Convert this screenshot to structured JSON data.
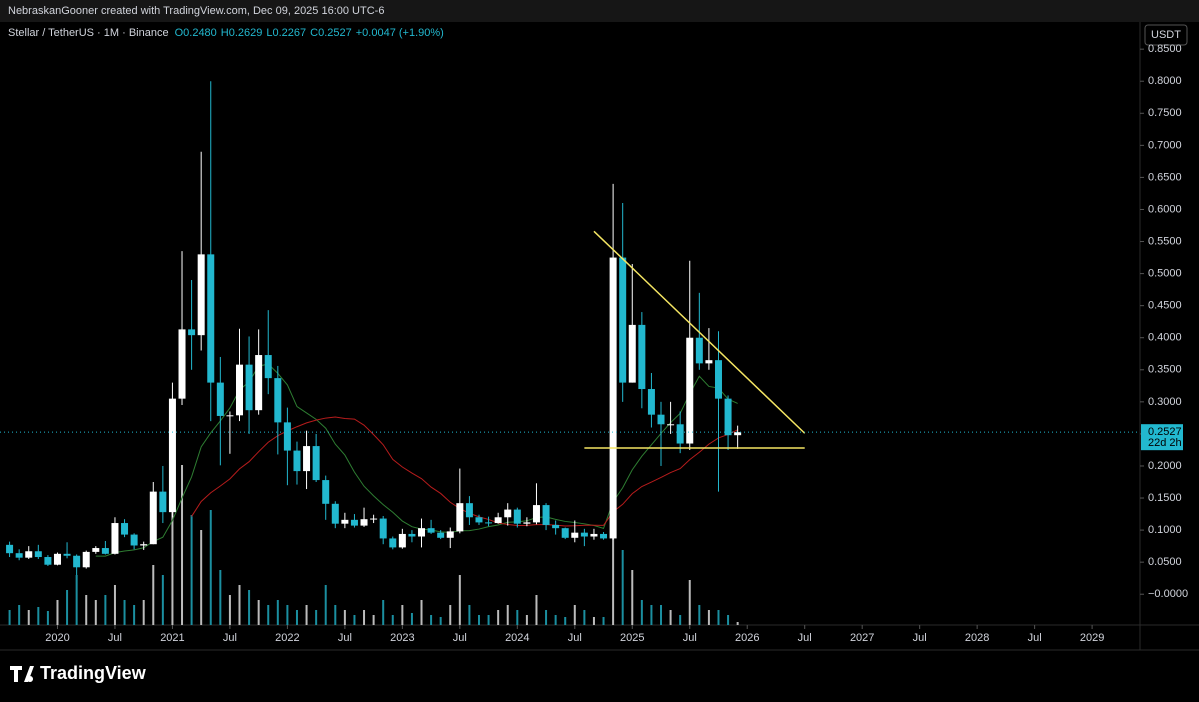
{
  "header": "NebraskanGooner created with TradingView.com, Dec 09, 2025 16:00 UTC-6",
  "legend": {
    "symbol": "Stellar / TetherUS · 1M · Binance",
    "fields": [
      "O0.2480",
      "H0.2629",
      "L0.2267",
      "C0.2527"
    ],
    "change": "+0.0047 (+1.90%)"
  },
  "currency": "USDT",
  "logo": "TradingView",
  "chart_data": {
    "type": "candlestick",
    "up_color": "#ffffff",
    "down_color": "#22b8cf",
    "x": [
      "2019-08",
      "2019-09",
      "2019-10",
      "2019-11",
      "2019-12",
      "2020-01",
      "2020-02",
      "2020-03",
      "2020-04",
      "2020-05",
      "2020-06",
      "2020-07",
      "2020-08",
      "2020-09",
      "2020-10",
      "2020-11",
      "2020-12",
      "2021-01",
      "2021-02",
      "2021-03",
      "2021-04",
      "2021-05",
      "2021-06",
      "2021-07",
      "2021-08",
      "2021-09",
      "2021-10",
      "2021-11",
      "2021-12",
      "2022-01",
      "2022-02",
      "2022-03",
      "2022-04",
      "2022-05",
      "2022-06",
      "2022-07",
      "2022-08",
      "2022-09",
      "2022-10",
      "2022-11",
      "2022-12",
      "2023-01",
      "2023-02",
      "2023-03",
      "2023-04",
      "2023-05",
      "2023-06",
      "2023-07",
      "2023-08",
      "2023-09",
      "2023-10",
      "2023-11",
      "2023-12",
      "2024-01",
      "2024-02",
      "2024-03",
      "2024-04",
      "2024-05",
      "2024-06",
      "2024-07",
      "2024-08",
      "2024-09",
      "2024-10",
      "2024-11",
      "2024-12",
      "2025-01",
      "2025-02",
      "2025-03",
      "2025-04",
      "2025-05",
      "2025-06",
      "2025-07",
      "2025-08",
      "2025-09",
      "2025-10",
      "2025-11",
      "2025-12"
    ],
    "open": [
      0.077,
      0.064,
      0.057,
      0.067,
      0.058,
      0.046,
      0.063,
      0.06,
      0.042,
      0.066,
      0.072,
      0.063,
      0.111,
      0.093,
      0.076,
      0.078,
      0.16,
      0.128,
      0.305,
      0.413,
      0.404,
      0.53,
      0.33,
      0.278,
      0.279,
      0.358,
      0.287,
      0.373,
      0.337,
      0.268,
      0.224,
      0.192,
      0.231,
      0.178,
      0.141,
      0.11,
      0.116,
      0.107,
      0.117,
      0.118,
      0.087,
      0.073,
      0.094,
      0.09,
      0.103,
      0.096,
      0.088,
      0.098,
      0.142,
      0.12,
      0.112,
      0.111,
      0.12,
      0.132,
      0.11,
      0.112,
      0.139,
      0.108,
      0.103,
      0.088,
      0.096,
      0.09,
      0.094,
      0.087,
      0.525,
      0.33,
      0.42,
      0.32,
      0.28,
      0.265,
      0.265,
      0.235,
      0.4,
      0.36,
      0.365,
      0.305,
      0.248
    ],
    "high": [
      0.082,
      0.07,
      0.075,
      0.077,
      0.061,
      0.065,
      0.081,
      0.062,
      0.068,
      0.075,
      0.083,
      0.12,
      0.117,
      0.095,
      0.082,
      0.175,
      0.2,
      0.33,
      0.535,
      0.49,
      0.69,
      0.8,
      0.37,
      0.285,
      0.414,
      0.402,
      0.413,
      0.443,
      0.356,
      0.291,
      0.238,
      0.255,
      0.25,
      0.185,
      0.145,
      0.127,
      0.125,
      0.135,
      0.124,
      0.122,
      0.09,
      0.102,
      0.1,
      0.118,
      0.116,
      0.1,
      0.104,
      0.196,
      0.153,
      0.124,
      0.121,
      0.127,
      0.142,
      0.135,
      0.12,
      0.173,
      0.142,
      0.115,
      0.104,
      0.115,
      0.102,
      0.102,
      0.097,
      0.64,
      0.61,
      0.515,
      0.44,
      0.345,
      0.3,
      0.3,
      0.285,
      0.52,
      0.47,
      0.415,
      0.41,
      0.31,
      0.2629
    ],
    "low": [
      0.058,
      0.053,
      0.055,
      0.055,
      0.044,
      0.045,
      0.056,
      0.03,
      0.04,
      0.063,
      0.062,
      0.062,
      0.089,
      0.07,
      0.069,
      0.078,
      0.111,
      0.12,
      0.295,
      0.35,
      0.38,
      0.27,
      0.201,
      0.219,
      0.27,
      0.25,
      0.28,
      0.312,
      0.218,
      0.17,
      0.171,
      0.164,
      0.175,
      0.116,
      0.103,
      0.103,
      0.104,
      0.105,
      0.111,
      0.078,
      0.07,
      0.071,
      0.081,
      0.073,
      0.094,
      0.086,
      0.072,
      0.095,
      0.108,
      0.108,
      0.106,
      0.11,
      0.107,
      0.104,
      0.106,
      0.109,
      0.1,
      0.093,
      0.086,
      0.081,
      0.075,
      0.085,
      0.085,
      0.085,
      0.3,
      0.33,
      0.29,
      0.26,
      0.2,
      0.25,
      0.22,
      0.225,
      0.35,
      0.35,
      0.16,
      0.225,
      0.2267
    ],
    "close": [
      0.064,
      0.057,
      0.067,
      0.058,
      0.046,
      0.063,
      0.06,
      0.042,
      0.066,
      0.072,
      0.063,
      0.111,
      0.093,
      0.076,
      0.078,
      0.16,
      0.128,
      0.305,
      0.413,
      0.404,
      0.53,
      0.33,
      0.278,
      0.279,
      0.358,
      0.287,
      0.373,
      0.337,
      0.268,
      0.224,
      0.192,
      0.231,
      0.178,
      0.141,
      0.11,
      0.116,
      0.107,
      0.117,
      0.118,
      0.087,
      0.073,
      0.094,
      0.09,
      0.103,
      0.096,
      0.088,
      0.098,
      0.142,
      0.12,
      0.112,
      0.111,
      0.12,
      0.132,
      0.11,
      0.112,
      0.139,
      0.108,
      0.103,
      0.088,
      0.096,
      0.09,
      0.094,
      0.087,
      0.525,
      0.33,
      0.42,
      0.32,
      0.28,
      0.265,
      0.265,
      0.235,
      0.4,
      0.36,
      0.365,
      0.305,
      0.248,
      0.2527
    ],
    "volume": [
      15,
      20,
      15,
      18,
      14,
      25,
      35,
      50,
      30,
      25,
      30,
      40,
      25,
      20,
      25,
      60,
      50,
      135,
      160,
      110,
      95,
      115,
      55,
      30,
      40,
      35,
      25,
      20,
      25,
      20,
      15,
      20,
      15,
      40,
      20,
      15,
      10,
      15,
      10,
      25,
      10,
      20,
      12,
      25,
      10,
      8,
      20,
      50,
      20,
      10,
      10,
      15,
      20,
      15,
      10,
      30,
      15,
      10,
      8,
      20,
      15,
      8,
      8,
      165,
      75,
      55,
      25,
      20,
      20,
      15,
      10,
      45,
      20,
      15,
      15,
      10,
      3
    ],
    "xlim": [
      "2019-07",
      "2029-06"
    ],
    "xticks": [
      {
        "value": "2020-01",
        "label": "2020"
      },
      {
        "value": "2020-07",
        "label": "Jul"
      },
      {
        "value": "2021-01",
        "label": "2021"
      },
      {
        "value": "2021-07",
        "label": "Jul"
      },
      {
        "value": "2022-01",
        "label": "2022"
      },
      {
        "value": "2022-07",
        "label": "Jul"
      },
      {
        "value": "2023-01",
        "label": "2023"
      },
      {
        "value": "2023-07",
        "label": "Jul"
      },
      {
        "value": "2024-01",
        "label": "2024"
      },
      {
        "value": "2024-07",
        "label": "Jul"
      },
      {
        "value": "2025-01",
        "label": "2025"
      },
      {
        "value": "2025-07",
        "label": "Jul"
      },
      {
        "value": "2026-01",
        "label": "2026"
      },
      {
        "value": "2026-07",
        "label": "Jul"
      },
      {
        "value": "2027-01",
        "label": "2027"
      },
      {
        "value": "2027-07",
        "label": "Jul"
      },
      {
        "value": "2028-01",
        "label": "2028"
      },
      {
        "value": "2028-07",
        "label": "Jul"
      },
      {
        "value": "2029-01",
        "label": "2029"
      }
    ],
    "ylim": [
      -0.048,
      0.883
    ],
    "yticks": [
      {
        "value": 0.85,
        "label": "0.8500"
      },
      {
        "value": 0.8,
        "label": "0.8000"
      },
      {
        "value": 0.75,
        "label": "0.7500"
      },
      {
        "value": 0.7,
        "label": "0.7000"
      },
      {
        "value": 0.65,
        "label": "0.6500"
      },
      {
        "value": 0.6,
        "label": "0.6000"
      },
      {
        "value": 0.55,
        "label": "0.5500"
      },
      {
        "value": 0.5,
        "label": "0.5000"
      },
      {
        "value": 0.45,
        "label": "0.4500"
      },
      {
        "value": 0.4,
        "label": "0.4000"
      },
      {
        "value": 0.35,
        "label": "0.3500"
      },
      {
        "value": 0.3,
        "label": "0.3000"
      },
      {
        "value": 0.25,
        "label": "0.2500"
      },
      {
        "value": 0.2,
        "label": "0.2000"
      },
      {
        "value": 0.15,
        "label": "0.1500"
      },
      {
        "value": 0.1,
        "label": "0.1000"
      },
      {
        "value": 0.05,
        "label": "0.0500"
      },
      {
        "value": 0,
        "label": "−0.0000"
      }
    ],
    "trendlines": [
      {
        "from": [
          "2024-09",
          0.566
        ],
        "to": [
          "2026-07",
          0.251
        ],
        "color": "#f5e663"
      },
      {
        "from": [
          "2024-08",
          0.228
        ],
        "to": [
          "2026-07",
          0.228
        ],
        "color": "#f5e663"
      }
    ],
    "price_line": {
      "value": 0.2527,
      "label": "0.2527",
      "countdown": "22d 2h",
      "color": "#22b8cf"
    }
  }
}
